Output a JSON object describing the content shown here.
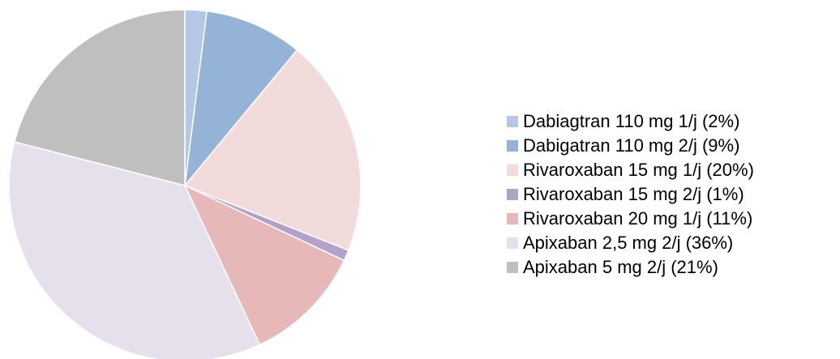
{
  "chart_data": {
    "type": "pie",
    "categories": [
      "Dabiagtran 110 mg 1/j (2%)",
      "Dabigatran 110 mg 2/j (9%)",
      "Rivaroxaban 15 mg 1/j (20%)",
      "Rivaroxaban 15 mg 2/j (1%)",
      "Rivaroxaban 20 mg 1/j (11%)",
      "Apixaban 2,5 mg 2/j (36%)",
      "Apixaban 5 mg 2/j (21%)"
    ],
    "values": [
      2,
      9,
      20,
      1,
      11,
      36,
      21
    ],
    "colors": [
      "#b4c7e7",
      "#95b3d7",
      "#f2dcdb",
      "#b3a2c7",
      "#e6b9b8",
      "#e6dfec",
      "#bfbfbf"
    ],
    "legend": "right"
  }
}
